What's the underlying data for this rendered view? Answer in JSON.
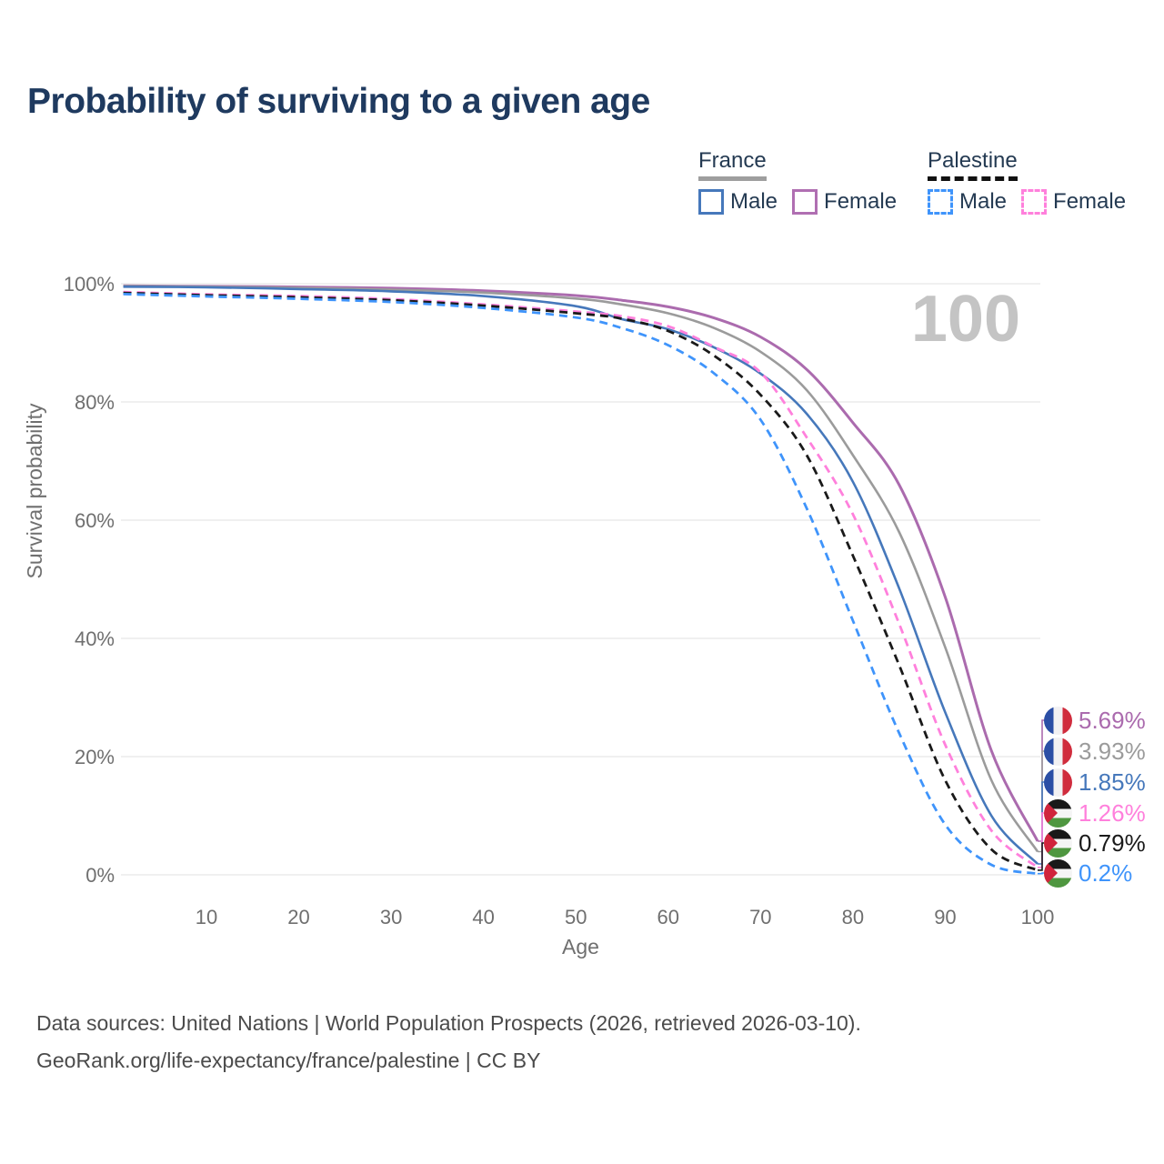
{
  "header": {
    "title": "Probability of surviving to a given age"
  },
  "legend": {
    "groups": [
      {
        "name": "France",
        "rule_style": "solid",
        "rule_color": "#9e9e9e",
        "items": [
          {
            "label": "Male",
            "color": "#4678bb",
            "dashed": false
          },
          {
            "label": "Female",
            "color": "#b06fb2",
            "dashed": false
          }
        ]
      },
      {
        "name": "Palestine",
        "rule_style": "dashed",
        "rule_color": "#111111",
        "items": [
          {
            "label": "Male",
            "color": "#3f94fb",
            "dashed": true
          },
          {
            "label": "Female",
            "color": "#ff80dc",
            "dashed": true
          }
        ]
      }
    ]
  },
  "chart_data": {
    "type": "line",
    "title": "Probability of surviving to a given age",
    "xlabel": "Age",
    "ylabel": "Survival probability",
    "xlim": [
      0,
      100
    ],
    "ylim": [
      0,
      100
    ],
    "grid": "horizontal-only",
    "watermark": "100",
    "x_ticks": [
      10,
      20,
      30,
      40,
      50,
      60,
      70,
      80,
      90,
      100
    ],
    "y_ticks": [
      0,
      20,
      40,
      60,
      80,
      100
    ],
    "y_tick_labels": [
      "0%",
      "20%",
      "40%",
      "60%",
      "80%",
      "100%"
    ],
    "ages": [
      1,
      10,
      20,
      30,
      40,
      50,
      55,
      60,
      65,
      70,
      75,
      80,
      85,
      90,
      95,
      100
    ],
    "series": [
      {
        "name": "France Female",
        "color": "#ab6bae",
        "dashed": false,
        "width": 3,
        "flag": "france",
        "end_label": "5.69%",
        "end_value": 5.69,
        "values": [
          99.65,
          99.55,
          99.45,
          99.25,
          98.8,
          98.0,
          97.2,
          96.1,
          94.2,
          91.0,
          85.5,
          76.5,
          66.0,
          47.0,
          21.0,
          5.69
        ]
      },
      {
        "name": "France Total",
        "color": "#9b9b9b",
        "dashed": false,
        "width": 2.6,
        "flag": "france",
        "end_label": "3.93%",
        "end_value": 3.93,
        "values": [
          99.6,
          99.5,
          99.3,
          99.0,
          98.5,
          97.5,
          96.5,
          95.0,
          92.5,
          88.5,
          82.0,
          71.0,
          58.0,
          38.5,
          16.0,
          3.93
        ]
      },
      {
        "name": "France Male",
        "color": "#4678bb",
        "dashed": false,
        "width": 2.6,
        "flag": "france",
        "end_label": "1.85%",
        "end_value": 1.85,
        "values": [
          99.5,
          99.4,
          99.1,
          98.7,
          97.9,
          96.2,
          94.0,
          92.3,
          89.2,
          84.8,
          78.0,
          66.5,
          48.5,
          27.5,
          10.0,
          1.85
        ]
      },
      {
        "name": "Palestine Female",
        "color": "#ff80dc",
        "dashed": true,
        "width": 2.8,
        "flag": "palestine",
        "end_label": "1.26%",
        "end_value": 1.26,
        "values": [
          98.6,
          98.2,
          97.9,
          97.4,
          96.5,
          95.3,
          94.5,
          92.8,
          89.3,
          85.0,
          74.0,
          61.0,
          42.5,
          22.0,
          7.5,
          1.26
        ]
      },
      {
        "name": "Palestine Total",
        "color": "#1a1a1a",
        "dashed": true,
        "width": 2.8,
        "flag": "palestine",
        "end_label": "0.79%",
        "end_value": 0.79,
        "values": [
          98.45,
          98.05,
          97.7,
          97.2,
          96.3,
          95.0,
          94.1,
          92.0,
          87.8,
          81.2,
          71.0,
          54.0,
          35.5,
          16.0,
          4.3,
          0.79
        ]
      },
      {
        "name": "Palestine Male",
        "color": "#3f94fb",
        "dashed": true,
        "width": 2.8,
        "flag": "palestine",
        "end_label": "0.2%",
        "end_value": 0.2,
        "values": [
          98.25,
          97.85,
          97.45,
          96.9,
          95.9,
          94.3,
          92.5,
          89.6,
          84.8,
          77.0,
          62.0,
          43.0,
          24.0,
          8.5,
          1.7,
          0.2
        ]
      }
    ]
  },
  "footer": {
    "line1": "Data sources: United Nations | World Population Prospects (2026, retrieved 2026-03-10).",
    "line2": "GeoRank.org/life-expectancy/france/palestine | CC BY"
  }
}
